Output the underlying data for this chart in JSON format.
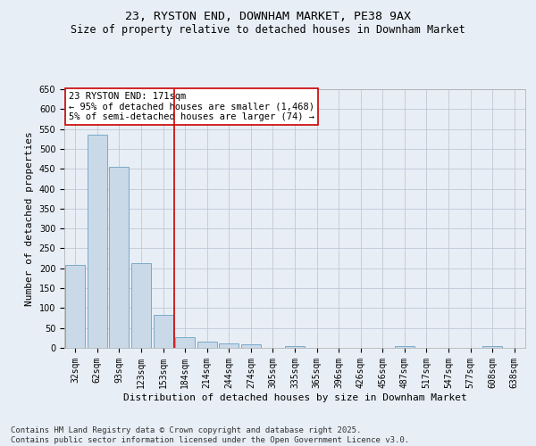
{
  "title": "23, RYSTON END, DOWNHAM MARKET, PE38 9AX",
  "subtitle": "Size of property relative to detached houses in Downham Market",
  "xlabel": "Distribution of detached houses by size in Downham Market",
  "ylabel": "Number of detached properties",
  "categories": [
    "32sqm",
    "62sqm",
    "93sqm",
    "123sqm",
    "153sqm",
    "184sqm",
    "214sqm",
    "244sqm",
    "274sqm",
    "305sqm",
    "335sqm",
    "365sqm",
    "396sqm",
    "426sqm",
    "456sqm",
    "487sqm",
    "517sqm",
    "547sqm",
    "577sqm",
    "608sqm",
    "638sqm"
  ],
  "values": [
    208,
    535,
    455,
    212,
    82,
    27,
    15,
    12,
    8,
    0,
    5,
    0,
    0,
    0,
    0,
    5,
    0,
    0,
    0,
    5,
    0
  ],
  "bar_color": "#c9d9e8",
  "bar_edge_color": "#7aaac8",
  "grid_color": "#c0c8d8",
  "background_color": "#e8eef5",
  "vline_x": 4.5,
  "vline_color": "#cc0000",
  "annotation_text": "23 RYSTON END: 171sqm\n← 95% of detached houses are smaller (1,468)\n5% of semi-detached houses are larger (74) →",
  "annotation_box_color": "#cc0000",
  "ylim": [
    0,
    650
  ],
  "yticks": [
    0,
    50,
    100,
    150,
    200,
    250,
    300,
    350,
    400,
    450,
    500,
    550,
    600,
    650
  ],
  "footnote": "Contains HM Land Registry data © Crown copyright and database right 2025.\nContains public sector information licensed under the Open Government Licence v3.0.",
  "title_fontsize": 9.5,
  "subtitle_fontsize": 8.5,
  "xlabel_fontsize": 8,
  "ylabel_fontsize": 8,
  "tick_fontsize": 7,
  "annotation_fontsize": 7.5,
  "footnote_fontsize": 6.5
}
